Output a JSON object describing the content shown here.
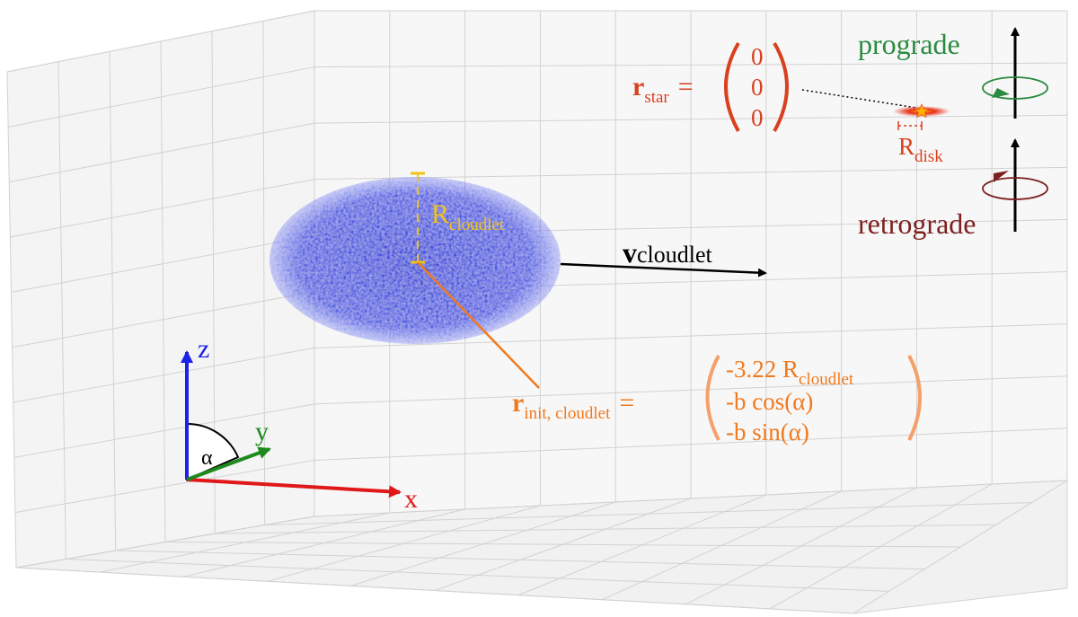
{
  "colors": {
    "grid": "#d2d2d2",
    "pane_left": "#f4f4f4",
    "pane_back": "#f7f7f7",
    "pane_floor": "#f1f1f1",
    "cloud": "#1f35d8",
    "cloud_marker": "#f0c419",
    "init_vector": "#f07a1e",
    "star_label": "#d9401e",
    "prograde": "#2a8a3f",
    "retrograde": "#7d1f1f",
    "axis_x": "#e01818",
    "axis_y": "#1e8a1e",
    "axis_z": "#1c22e6",
    "black": "#000000"
  },
  "labels": {
    "r_cloudlet_main": "R",
    "r_cloudlet_sub": "cloudlet",
    "v_cloudlet_main": "v",
    "v_cloudlet_sub": "cloudlet",
    "r_star_main": "r",
    "r_star_sub": "star",
    "equals": "=",
    "r_disk_main": "R",
    "r_disk_sub": "disk",
    "prograde": "prograde",
    "retrograde": "retrograde",
    "r_init_main": "r",
    "r_init_sub": "init, cloudlet",
    "axis_x": "x",
    "axis_y": "y",
    "axis_z": "z",
    "alpha": "α"
  },
  "matrices": {
    "star": [
      "0",
      "0",
      "0"
    ],
    "init": {
      "row1_main": "-3.22 R",
      "row1_sub": "cloudlet",
      "row2": "-b cos(α)",
      "row3": "-b sin(α)"
    }
  },
  "icons": {
    "star": "star-icon",
    "prograde_rotation": "prograde-rotation-icon",
    "retrograde_rotation": "retrograde-rotation-icon"
  }
}
